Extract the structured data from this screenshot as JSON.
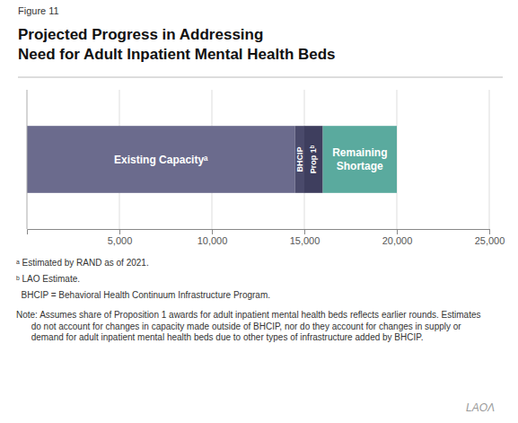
{
  "chart_data": {
    "type": "bar",
    "orientation": "horizontal",
    "stacked": true,
    "caption": "Figure 11",
    "title": "Projected Progress in Addressing\nNeed for Adult Inpatient Mental Health Beds",
    "categories": [
      null
    ],
    "series": [
      {
        "name": "Existing Capacityᵃ",
        "color": "#6b6b8d",
        "values": [
          14500
        ]
      },
      {
        "name": "BHCIP",
        "color": "#4a4a6b",
        "values": [
          500
        ]
      },
      {
        "name": "Prop 1ᵇ",
        "color": "#3e3e5e",
        "values": [
          1000
        ]
      },
      {
        "name": "Remaining\nShortage",
        "color": "#5aaa9e",
        "values": [
          4000
        ]
      }
    ],
    "xlim": [
      0,
      25000
    ],
    "xticks": [
      {
        "value": 5000,
        "label": "5,000"
      },
      {
        "value": 10000,
        "label": "10,000"
      },
      {
        "value": 15000,
        "label": "15,000"
      },
      {
        "value": 20000,
        "label": "20,000"
      },
      {
        "value": 25000,
        "label": "25,000"
      }
    ],
    "grid": true,
    "tick_labels": "x",
    "notes": [
      "ᵃ Estimated by RAND as of 2021.",
      "ᵇ LAO Estimate.",
      "  BHCIP = Behavioral Health Continuum Infrastructure Program.",
      "Note: Assumes share of Proposition 1 awards for adult inpatient mental health beds reflects earlier rounds. Estimates\n      do not account for changes in capacity made outside of BHCIP, nor do they account for changes in supply or\n      demand for adult inpatient mental health beds due to other types of infrastructure added by BHCIP."
    ],
    "credit": "LAOΛ"
  }
}
